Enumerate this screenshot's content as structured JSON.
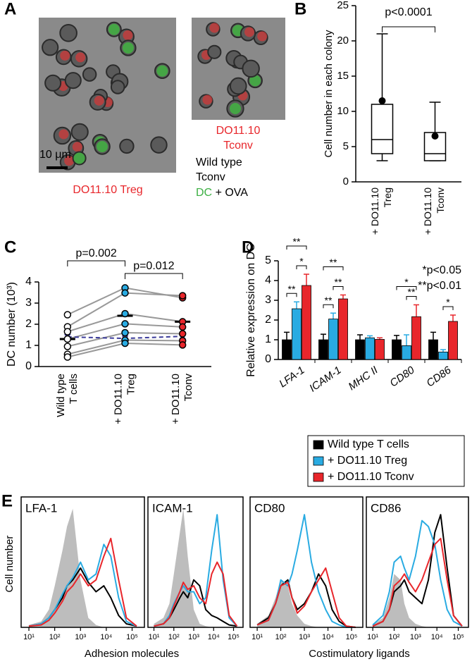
{
  "panel_labels": [
    "A",
    "B",
    "C",
    "D",
    "E"
  ],
  "panel_a": {
    "scale": "10 μm",
    "treg_label": "DO11.10 Treg",
    "tconv_label": [
      "DO11.10",
      "Tconv"
    ],
    "wild_type": [
      "Wild type",
      "Tconv"
    ],
    "dc": "DC",
    "ova": "+ OVA"
  },
  "panel_e": {
    "ylabel": "Cell number",
    "xlabels": [
      "Adhesion molecules",
      "Costimulatory ligands"
    ]
  },
  "chart_data": [
    {
      "type": "box",
      "title": "p<0.0001",
      "ylabel": "Cell number in each colony",
      "categories": [
        [
          "+ DO11.10",
          "Treg"
        ],
        [
          "+ DO11.10",
          "Tconv"
        ]
      ],
      "boxes": [
        {
          "min": 3,
          "q1": 4,
          "median": 6,
          "q3": 11,
          "max": 21,
          "mean": 11.5
        },
        {
          "min": 3,
          "q1": 3,
          "median": 4,
          "q3": 7,
          "max": 11.3,
          "mean": 6.5
        }
      ],
      "ylim": [
        0,
        25
      ],
      "yticks": [
        0,
        5,
        10,
        15,
        20,
        25
      ]
    },
    {
      "type": "paired_dots",
      "ylabel": "DC number (10³)",
      "categories": [
        [
          "Wild type",
          "T cells"
        ],
        [
          "+ DO11.10",
          "Treg"
        ],
        [
          "+ DO11.10",
          "Tconv"
        ]
      ],
      "colors": [
        "#ffffff",
        "#29abe2",
        "#e8262b"
      ],
      "values": [
        [
          2.45,
          1.88,
          1.65,
          1.3,
          0.95,
          0.58,
          0.45
        ],
        [
          3.72,
          3.48,
          2.5,
          2.02,
          1.6,
          1.25,
          1.1
        ],
        [
          3.25,
          3.35,
          2.12,
          1.87,
          1.55,
          1.22,
          1.02
        ]
      ],
      "means": [
        1.3,
        2.4,
        2.12
      ],
      "control_means": [
        1.4,
        1.33,
        1.43
      ],
      "control_color": "#3b3b9a",
      "annotations": [
        {
          "label": "p=0.002",
          "pair": [
            0,
            1
          ]
        },
        {
          "label": "p=0.012",
          "pair": [
            1,
            2
          ]
        }
      ],
      "ylim": [
        0,
        4
      ],
      "yticks": [
        0,
        1,
        2,
        3,
        4
      ]
    },
    {
      "type": "bar",
      "ylabel": "Relative expression on DC",
      "categories": [
        "LFA-1",
        "ICAM-1",
        "MHC II",
        "CD80",
        "CD86"
      ],
      "series": [
        {
          "name": "Wild type T cells",
          "color": "#000000",
          "values": [
            1,
            1,
            1,
            1,
            1
          ],
          "errors": [
            0.38,
            0.28,
            0.25,
            0.22,
            0.38
          ]
        },
        {
          "name": "+ DO11.10 Treg",
          "color": "#29abe2",
          "values": [
            2.57,
            2.05,
            1.1,
            0.7,
            0.38
          ],
          "errors": [
            0.35,
            0.3,
            0.1,
            0.55,
            0.12
          ]
        },
        {
          "name": "+ DO11.10 Tconv",
          "color": "#e8262b",
          "values": [
            3.75,
            3.07,
            1.02,
            2.17,
            1.93
          ],
          "errors": [
            0.57,
            0.2,
            0.08,
            0.6,
            0.32
          ]
        }
      ],
      "annotations": [
        {
          "label": "**",
          "category": 0,
          "pair": [
            0,
            1
          ]
        },
        {
          "label": "*",
          "category": 0,
          "pair": [
            1,
            2
          ]
        },
        {
          "label": "**",
          "category": 0,
          "pair": [
            0,
            2
          ]
        },
        {
          "label": "**",
          "category": 1,
          "pair": [
            0,
            1
          ]
        },
        {
          "label": "**",
          "category": 1,
          "pair": [
            1,
            2
          ]
        },
        {
          "label": "**",
          "category": 1,
          "pair": [
            0,
            2
          ]
        },
        {
          "label": "**",
          "category": 3,
          "pair": [
            1,
            2
          ]
        },
        {
          "label": "*",
          "category": 3,
          "pair": [
            0,
            2
          ]
        },
        {
          "label": "*",
          "category": 4,
          "pair": [
            1,
            2
          ]
        }
      ],
      "notes": [
        "*p<0.05",
        "**p<0.01"
      ],
      "legend": "bottom-right",
      "ylim": [
        0,
        5
      ],
      "yticks": [
        0,
        1,
        2,
        3,
        4,
        5
      ]
    },
    {
      "type": "histogram_curves",
      "title": "LFA-1",
      "log_x": true,
      "xlim": [
        5,
        300000
      ],
      "xticks": [
        {
          "value": 10,
          "label": "10¹"
        },
        {
          "value": 100,
          "label": "10²"
        },
        {
          "value": 1000,
          "label": "10³"
        },
        {
          "value": 10000,
          "label": "10⁴"
        },
        {
          "value": 100000,
          "label": "10⁵"
        }
      ],
      "ylim": [
        0,
        110
      ],
      "x": [
        10,
        30,
        60,
        100,
        200,
        300,
        500,
        1000,
        2000,
        4000,
        8000,
        15000,
        30000,
        60000,
        150000
      ],
      "series": [
        {
          "color": "#bdbdbd",
          "fill": true,
          "values": [
            2,
            5,
            15,
            35,
            65,
            85,
            100,
            40,
            8,
            2,
            0,
            0,
            0,
            0,
            0
          ]
        },
        {
          "color": "#000000",
          "values": [
            1,
            3,
            8,
            15,
            25,
            35,
            40,
            50,
            38,
            30,
            35,
            25,
            10,
            3,
            1
          ]
        },
        {
          "color": "#29abe2",
          "values": [
            1,
            3,
            8,
            15,
            28,
            35,
            42,
            55,
            40,
            45,
            70,
            60,
            25,
            5,
            1
          ]
        },
        {
          "color": "#e8262b",
          "values": [
            1,
            2,
            6,
            12,
            22,
            30,
            35,
            45,
            35,
            40,
            60,
            75,
            40,
            8,
            1
          ]
        }
      ]
    },
    {
      "type": "histogram_curves",
      "title": "ICAM-1",
      "log_x": true,
      "xlim": [
        5,
        300000
      ],
      "xticks": [
        {
          "value": 10,
          "label": "10¹"
        },
        {
          "value": 100,
          "label": "10²"
        },
        {
          "value": 1000,
          "label": "10³"
        },
        {
          "value": 10000,
          "label": "10⁴"
        },
        {
          "value": 100000,
          "label": "10⁵"
        }
      ],
      "ylim": [
        0,
        110
      ],
      "x": [
        10,
        30,
        60,
        100,
        200,
        300,
        500,
        1000,
        2000,
        4000,
        8000,
        15000,
        30000,
        60000,
        150000
      ],
      "series": [
        {
          "color": "#bdbdbd",
          "fill": true,
          "values": [
            3,
            8,
            20,
            45,
            80,
            100,
            60,
            15,
            3,
            1,
            0,
            0,
            0,
            0,
            0
          ]
        },
        {
          "color": "#000000",
          "values": [
            1,
            3,
            8,
            15,
            25,
            30,
            25,
            40,
            35,
            15,
            10,
            8,
            5,
            2,
            1
          ]
        },
        {
          "color": "#29abe2",
          "values": [
            1,
            3,
            10,
            20,
            30,
            35,
            30,
            30,
            20,
            25,
            65,
            95,
            40,
            8,
            1
          ]
        },
        {
          "color": "#e8262b",
          "values": [
            1,
            3,
            8,
            18,
            30,
            38,
            32,
            35,
            25,
            20,
            45,
            55,
            45,
            10,
            1
          ]
        }
      ]
    },
    {
      "type": "histogram_curves",
      "title": "CD80",
      "log_x": true,
      "xlim": [
        5,
        300000
      ],
      "xticks": [
        {
          "value": 10,
          "label": "10¹"
        },
        {
          "value": 100,
          "label": "10²"
        },
        {
          "value": 1000,
          "label": "10³"
        },
        {
          "value": 10000,
          "label": "10⁴"
        },
        {
          "value": 100000,
          "label": "10⁵"
        }
      ],
      "ylim": [
        0,
        110
      ],
      "x": [
        10,
        30,
        60,
        100,
        200,
        300,
        500,
        1000,
        2000,
        4000,
        8000,
        15000,
        30000,
        60000,
        150000
      ],
      "series": [
        {
          "color": "#bdbdbd",
          "fill": true,
          "values": [
            3,
            10,
            25,
            40,
            35,
            20,
            10,
            3,
            1,
            0,
            0,
            0,
            0,
            0,
            0
          ]
        },
        {
          "color": "#000000",
          "values": [
            2,
            8,
            20,
            35,
            40,
            25,
            15,
            20,
            30,
            45,
            35,
            15,
            5,
            1,
            0
          ]
        },
        {
          "color": "#29abe2",
          "values": [
            2,
            6,
            20,
            40,
            35,
            45,
            65,
            95,
            55,
            30,
            15,
            5,
            2,
            0,
            0
          ]
        },
        {
          "color": "#e8262b",
          "values": [
            2,
            6,
            20,
            35,
            38,
            25,
            12,
            18,
            30,
            40,
            50,
            30,
            8,
            1,
            0
          ]
        }
      ]
    },
    {
      "type": "histogram_curves",
      "title": "CD86",
      "log_x": true,
      "xlim": [
        5,
        300000
      ],
      "xticks": [
        {
          "value": 10,
          "label": "10¹"
        },
        {
          "value": 100,
          "label": "10²"
        },
        {
          "value": 1000,
          "label": "10³"
        },
        {
          "value": 10000,
          "label": "10⁴"
        },
        {
          "value": 100000,
          "label": "10⁵"
        }
      ],
      "ylim": [
        0,
        110
      ],
      "x": [
        10,
        30,
        60,
        100,
        200,
        300,
        500,
        1000,
        2000,
        4000,
        8000,
        15000,
        30000,
        60000,
        150000
      ],
      "series": [
        {
          "color": "#bdbdbd",
          "fill": true,
          "values": [
            2,
            8,
            25,
            45,
            40,
            20,
            8,
            3,
            1,
            0,
            0,
            0,
            0,
            0,
            0
          ]
        },
        {
          "color": "#000000",
          "values": [
            1,
            5,
            15,
            30,
            35,
            40,
            30,
            25,
            20,
            40,
            80,
            95,
            50,
            10,
            1
          ]
        },
        {
          "color": "#29abe2",
          "values": [
            2,
            10,
            30,
            55,
            60,
            50,
            40,
            60,
            90,
            85,
            70,
            40,
            15,
            5,
            1
          ]
        },
        {
          "color": "#e8262b",
          "values": [
            1,
            5,
            15,
            35,
            40,
            45,
            38,
            30,
            40,
            55,
            70,
            75,
            40,
            10,
            1
          ]
        }
      ]
    }
  ]
}
